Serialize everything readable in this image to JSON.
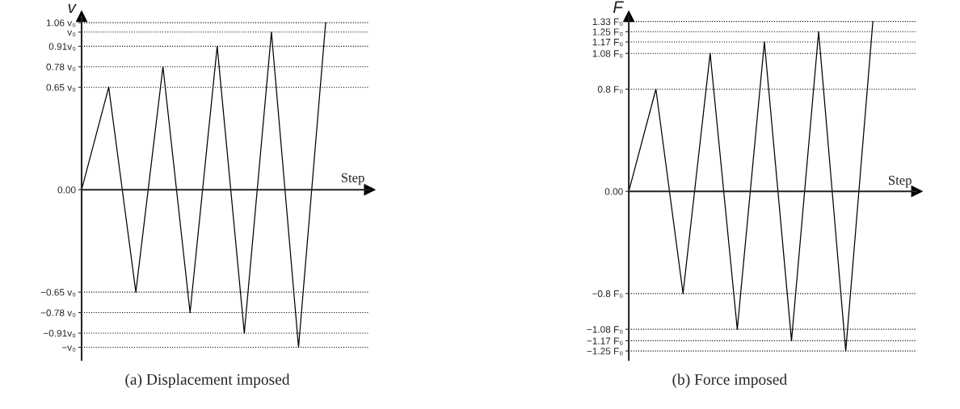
{
  "chart_data": [
    {
      "type": "line",
      "title": "(a) Displacement imposed",
      "xlabel": "Step",
      "ylabel": "v",
      "categories": [
        null,
        null,
        null,
        null,
        null,
        null,
        null,
        null,
        null,
        null
      ],
      "series": [
        {
          "color": "#000000",
          "values": [
            0,
            0.65,
            -0.65,
            0.78,
            -0.78,
            0.91,
            -0.91,
            1,
            -1,
            1.06
          ]
        }
      ],
      "ylim": [
        -1.08,
        1.1
      ],
      "yticks": [
        {
          "value": -1,
          "label": "−v₀"
        },
        {
          "value": -0.91,
          "label": "−0.91v₀"
        },
        {
          "value": -0.78,
          "label": "−0.78 v₀"
        },
        {
          "value": -0.65,
          "label": "−0.65 v₀"
        },
        {
          "value": 0,
          "label": "0.00"
        },
        {
          "value": 0.65,
          "label": "0.65 v₀"
        },
        {
          "value": 0.78,
          "label": "0.78 v₀"
        },
        {
          "value": 0.91,
          "label": "0.91v₀"
        },
        {
          "value": 1,
          "label": "v₀"
        },
        {
          "value": 1.06,
          "label": "1.06 v₀"
        }
      ],
      "grid": "y",
      "tick_labels": "y",
      "legend": false,
      "marker": "none",
      "line_style": "solid"
    },
    {
      "type": "line",
      "title": "(b) Force imposed",
      "xlabel": "Step",
      "ylabel": "F",
      "categories": [
        null,
        null,
        null,
        null,
        null,
        null,
        null,
        null,
        null,
        null
      ],
      "series": [
        {
          "color": "#000000",
          "values": [
            0,
            0.8,
            -0.8,
            1.08,
            -1.08,
            1.17,
            -1.17,
            1.25,
            -1.25,
            1.33
          ]
        }
      ],
      "ylim": [
        -1.32,
        1.37
      ],
      "yticks": [
        {
          "value": -1.25,
          "label": "−1.25 F₀"
        },
        {
          "value": -1.17,
          "label": "−1.17 F₀"
        },
        {
          "value": -1.08,
          "label": "−1.08 F₀"
        },
        {
          "value": -0.8,
          "label": "−0.8 F₀"
        },
        {
          "value": 0,
          "label": "0.00"
        },
        {
          "value": 0.8,
          "label": "0.8 F₀"
        },
        {
          "value": 1.08,
          "label": "1.08 F₀"
        },
        {
          "value": 1.17,
          "label": "1.17 F₀"
        },
        {
          "value": 1.25,
          "label": "1.25 F₀"
        },
        {
          "value": 1.33,
          "label": "1.33 F₀"
        }
      ],
      "grid": "y",
      "tick_labels": "y",
      "legend": false,
      "marker": "none",
      "line_style": "solid"
    }
  ]
}
